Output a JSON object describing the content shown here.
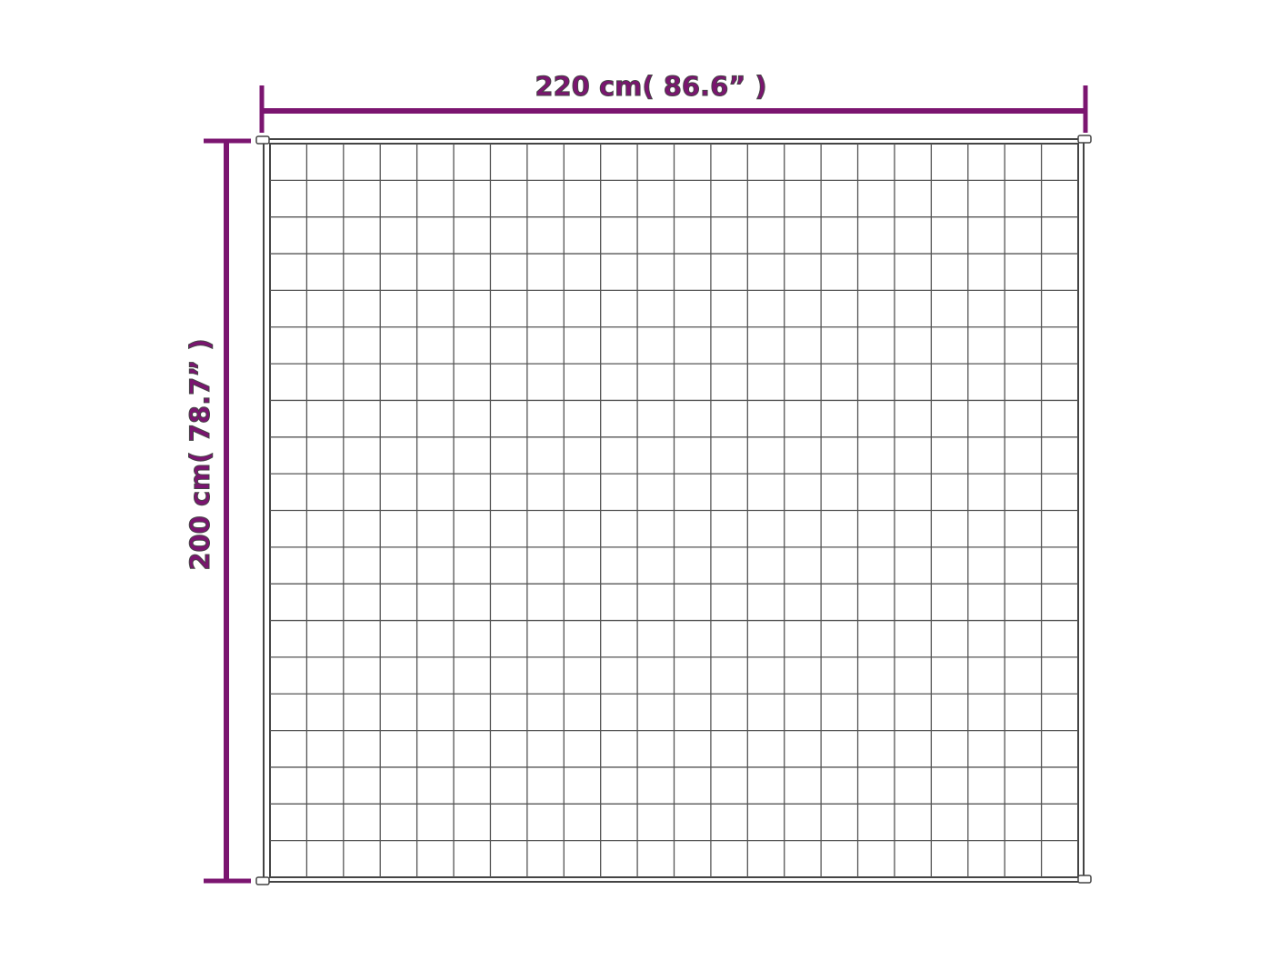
{
  "dimensions": {
    "width_label": "220 cm( 86.6”  )",
    "height_label": "200 cm( 78.7”  )"
  },
  "quilt_grid": {
    "columns": 22,
    "rows": 20
  },
  "colors": {
    "dimension": "#7b1570",
    "outline": "#444444",
    "grid": "#555555",
    "background": "#ffffff"
  }
}
